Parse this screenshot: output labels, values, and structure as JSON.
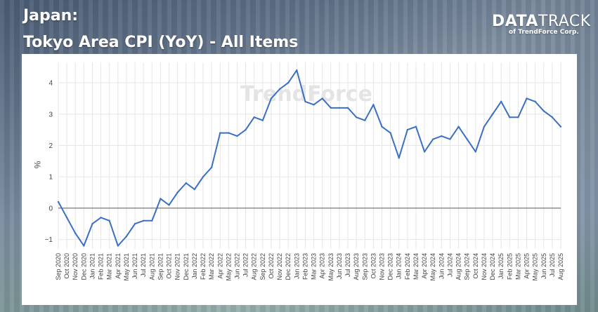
{
  "header": {
    "title_line1": "Japan:",
    "title_line2": "Tokyo Area CPI (YoY) - All Items"
  },
  "brand": {
    "name_bold": "DATA",
    "name_light": "TRACK",
    "tagline": "of TrendForce Corp."
  },
  "colors": {
    "line": "#3a6fc4",
    "grid": "#e6e6e6",
    "zero_line": "#555555"
  },
  "chart_data": {
    "type": "line",
    "title": "Tokyo Area CPI (YoY) - All Items",
    "xlabel": "",
    "ylabel": "%",
    "ylim": [
      -1.3,
      4.65
    ],
    "yticks": [
      -1,
      0,
      1,
      2,
      3,
      4
    ],
    "grid": true,
    "watermark": "TrendForce",
    "x": [
      "Sep 2020",
      "Oct 2020",
      "Nov 2020",
      "Dec 2020",
      "Jan 2021",
      "Feb 2021",
      "Mar 2021",
      "Apr 2021",
      "May 2021",
      "Jun 2021",
      "Jul 2021",
      "Aug 2021",
      "Sep 2021",
      "Oct 2021",
      "Nov 2021",
      "Dec 2021",
      "Jan 2022",
      "Feb 2022",
      "Mar 2022",
      "Apr 2022",
      "May 2022",
      "Jun 2022",
      "Jul 2022",
      "Aug 2022",
      "Sep 2022",
      "Oct 2022",
      "Nov 2022",
      "Dec 2022",
      "Jan 2023",
      "Feb 2023",
      "Mar 2023",
      "Apr 2023",
      "May 2023",
      "Jun 2023",
      "Jul 2023",
      "Aug 2023",
      "Sep 2023",
      "Oct 2023",
      "Nov 2023",
      "Dec 2023",
      "Jan 2024",
      "Feb 2024",
      "Mar 2024",
      "Apr 2024",
      "May 2024",
      "Jun 2024",
      "Jul 2024",
      "Aug 2024",
      "Sep 2024",
      "Oct 2024",
      "Nov 2024",
      "Dec 2024",
      "Jan 2025",
      "Feb 2025",
      "Mar 2025",
      "Apr 2025",
      "May 2025",
      "Jun 2025",
      "Jul 2025",
      "Aug 2025"
    ],
    "series": [
      {
        "values": [
          0.2,
          -0.3,
          -0.8,
          -1.2,
          -0.5,
          -0.3,
          -0.4,
          -1.2,
          -0.9,
          -0.5,
          -0.4,
          -0.4,
          0.3,
          0.1,
          0.5,
          0.8,
          0.6,
          1.0,
          1.3,
          2.4,
          2.4,
          2.3,
          2.5,
          2.9,
          2.8,
          3.5,
          3.8,
          4.0,
          4.4,
          3.4,
          3.3,
          3.5,
          3.2,
          3.2,
          3.2,
          2.9,
          2.8,
          3.3,
          2.6,
          2.4,
          1.6,
          2.5,
          2.6,
          1.8,
          2.2,
          2.3,
          2.2,
          2.6,
          2.2,
          1.8,
          2.6,
          3.0,
          3.4,
          2.9,
          2.9,
          3.5,
          3.4,
          3.1,
          2.9,
          2.6
        ]
      }
    ]
  }
}
